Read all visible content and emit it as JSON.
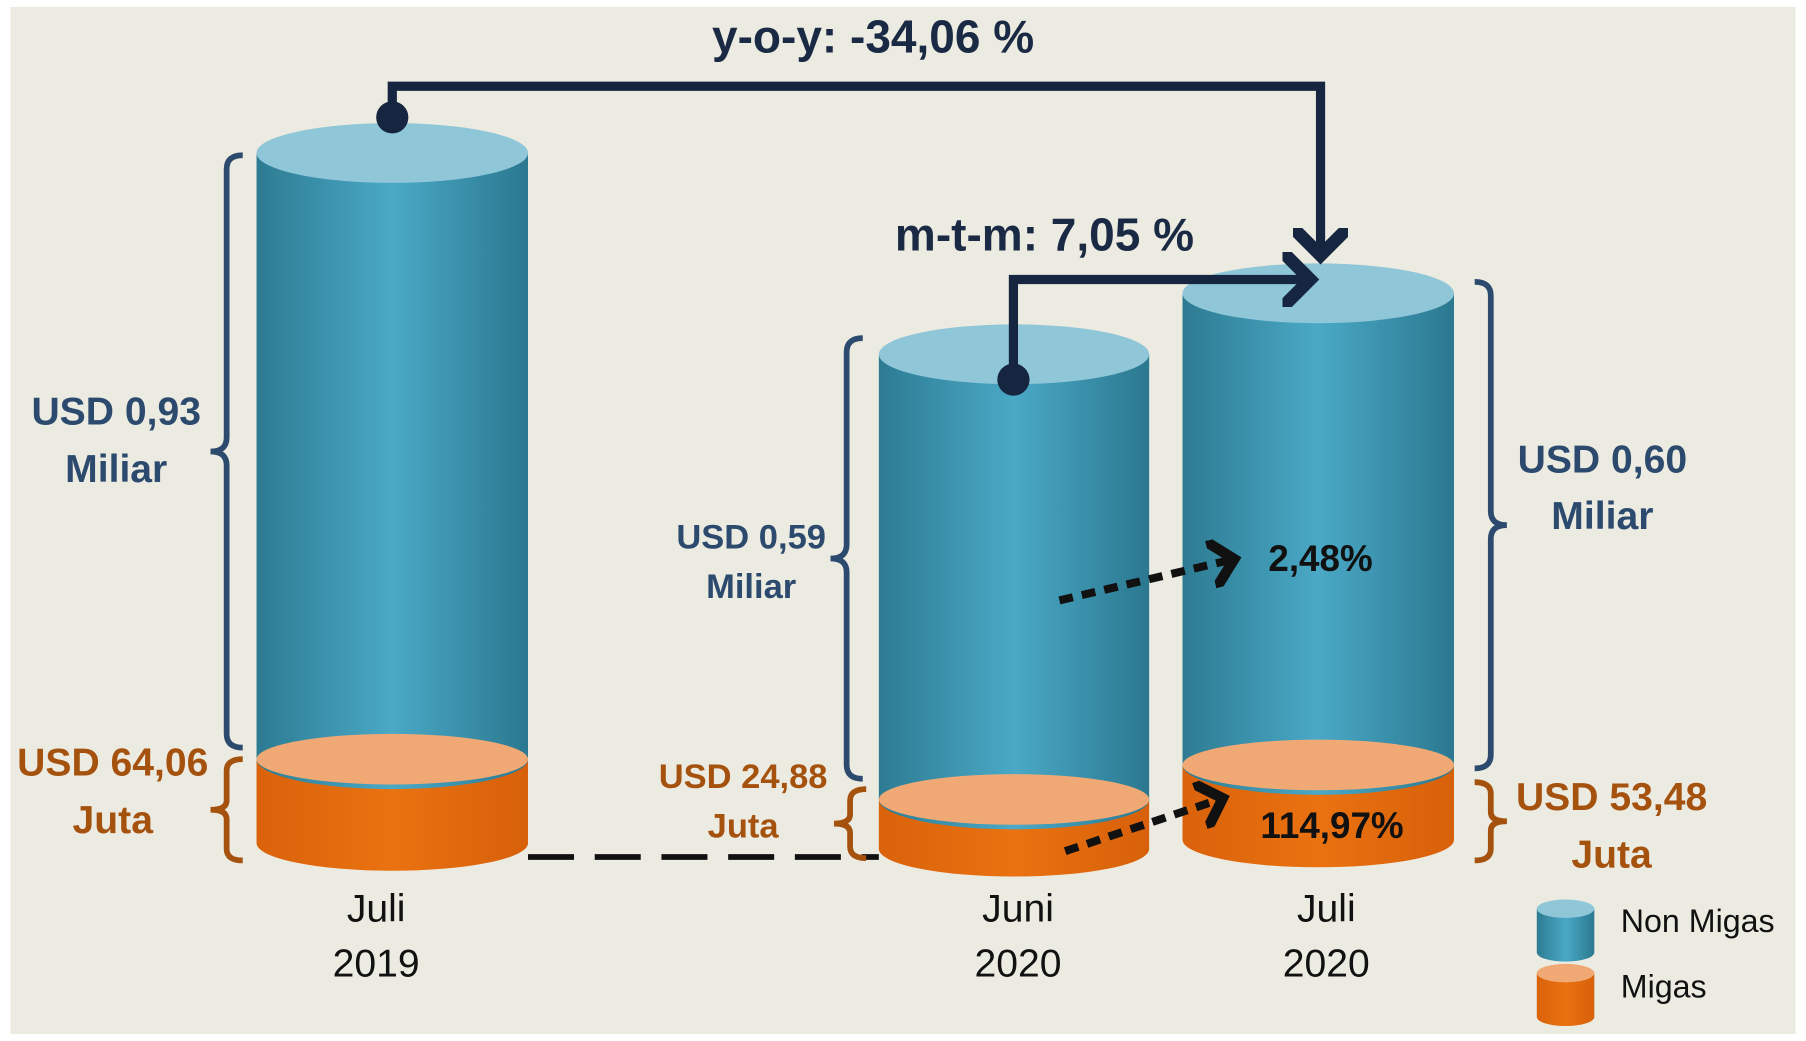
{
  "annotations": {
    "yoy": "y-o-y:  -34,06 %",
    "mtm": "m-t-m: 7,05 %",
    "growth_non_migas": "2,48%",
    "growth_migas": "114,97%"
  },
  "bars": [
    {
      "period": [
        "Juli",
        "2019"
      ],
      "non_migas": [
        "USD 0,93",
        "Miliar"
      ],
      "migas": [
        "USD 64,06",
        "Juta"
      ]
    },
    {
      "period": [
        "Juni",
        "2020"
      ],
      "non_migas": [
        "USD 0,59",
        "Miliar"
      ],
      "migas": [
        "USD 24,88",
        "Juta"
      ]
    },
    {
      "period": [
        "Juli",
        "2020"
      ],
      "non_migas": [
        "USD 0,60",
        "Miliar"
      ],
      "migas": [
        "USD 53,48",
        "Juta"
      ]
    }
  ],
  "legend": [
    "Non Migas",
    "Migas"
  ]
}
